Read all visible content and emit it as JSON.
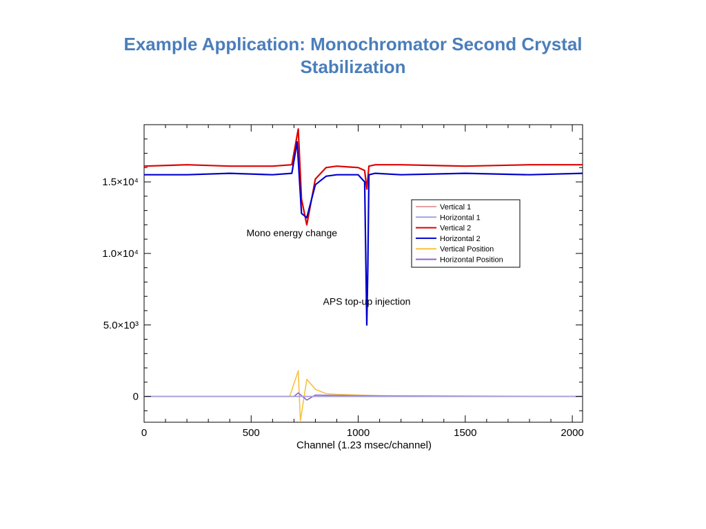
{
  "slide": {
    "title": "Example Application: Monochromator Second Crystal Stabilization"
  },
  "chart_data": {
    "type": "line",
    "title": "",
    "xlabel": "Channel (1.23 msec/channel)",
    "ylabel": "",
    "xlim": [
      0,
      2048
    ],
    "ylim": [
      -1800,
      19000
    ],
    "grid": false,
    "legend_position": "top-right",
    "x_ticks": [
      {
        "value": 0,
        "label": "0"
      },
      {
        "value": 500,
        "label": "500"
      },
      {
        "value": 1000,
        "label": "1000"
      },
      {
        "value": 1500,
        "label": "1500"
      },
      {
        "value": 2000,
        "label": "2000"
      }
    ],
    "y_ticks": [
      {
        "value": 0,
        "label": "0"
      },
      {
        "value": 5000,
        "label": "5.0×10³"
      },
      {
        "value": 10000,
        "label": "1.0×10⁴"
      },
      {
        "value": 15000,
        "label": "1.5×10⁴"
      }
    ],
    "series": [
      {
        "name": "Vertical 1",
        "color": "#e8a0a0",
        "x": [
          0,
          500,
          700,
          730,
          1000,
          1040,
          1500,
          2048
        ],
        "y": [
          0,
          0,
          0,
          0,
          0,
          0,
          0,
          0
        ]
      },
      {
        "name": "Horizontal 1",
        "color": "#a0a0e0",
        "x": [
          0,
          500,
          700,
          730,
          1000,
          1040,
          1500,
          2048
        ],
        "y": [
          0,
          0,
          0,
          0,
          0,
          0,
          0,
          0
        ]
      },
      {
        "name": "Vertical 2",
        "color": "#dd0000",
        "x": [
          0,
          200,
          400,
          600,
          690,
          720,
          735,
          760,
          800,
          850,
          900,
          1000,
          1030,
          1040,
          1050,
          1080,
          1200,
          1500,
          1800,
          2048
        ],
        "y": [
          16100,
          16200,
          16100,
          16100,
          16200,
          18700,
          13800,
          12000,
          15200,
          16000,
          16100,
          16000,
          15800,
          14500,
          16100,
          16200,
          16200,
          16100,
          16200,
          16200
        ]
      },
      {
        "name": "Horizontal 2",
        "color": "#0000cc",
        "x": [
          0,
          200,
          400,
          600,
          690,
          715,
          735,
          760,
          800,
          850,
          900,
          1000,
          1030,
          1040,
          1045,
          1050,
          1080,
          1200,
          1500,
          1800,
          2048
        ],
        "y": [
          15500,
          15500,
          15600,
          15500,
          15600,
          17800,
          12800,
          12500,
          14800,
          15400,
          15500,
          15500,
          15000,
          5000,
          9000,
          15500,
          15600,
          15500,
          15600,
          15500,
          15600
        ]
      },
      {
        "name": "Vertical Position",
        "color": "#f8c040",
        "x": [
          0,
          500,
          680,
          720,
          730,
          760,
          800,
          850,
          900,
          1000,
          1100,
          1500,
          2048
        ],
        "y": [
          0,
          0,
          0,
          1800,
          -1700,
          1200,
          500,
          200,
          150,
          100,
          50,
          0,
          0
        ]
      },
      {
        "name": "Horizontal Position",
        "color": "#9060d0",
        "x": [
          0,
          500,
          700,
          720,
          760,
          800,
          900,
          1000,
          1500,
          2048
        ],
        "y": [
          0,
          0,
          0,
          250,
          -250,
          100,
          80,
          50,
          30,
          0
        ]
      }
    ],
    "annotations": [
      {
        "text": "Mono energy change",
        "x": 690,
        "y": 11200
      },
      {
        "text": "APS top-up injection",
        "x": 1040,
        "y": 6400
      }
    ]
  }
}
